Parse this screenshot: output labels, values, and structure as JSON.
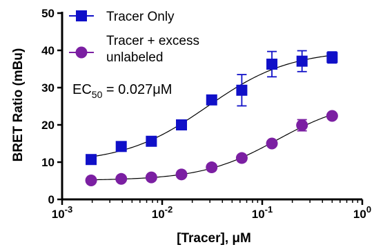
{
  "chart_data": {
    "type": "scatter",
    "xscale": "log",
    "xlim": [
      0.001,
      1
    ],
    "ylim": [
      0,
      50
    ],
    "xlabel": "[Tracer], μM",
    "ylabel": "BRET Ratio (mBu)",
    "x_ticks": [
      {
        "value": 0.001,
        "base": "10",
        "exp": "-3"
      },
      {
        "value": 0.01,
        "base": "10",
        "exp": "-2"
      },
      {
        "value": 0.1,
        "base": "10",
        "exp": "-1"
      },
      {
        "value": 1,
        "base": "10",
        "exp": "0"
      }
    ],
    "y_ticks": [
      "0",
      "10",
      "20",
      "30",
      "40",
      "50"
    ],
    "legend_position": "top-left",
    "annotation": {
      "prefix": "EC",
      "subscript": "50",
      "suffix": " = 0.027μM"
    },
    "series": [
      {
        "name": "Tracer Only",
        "legend_lines": [
          "Tracer Only"
        ],
        "color": "#1010c8",
        "marker": "square",
        "x": [
          0.00195,
          0.0039,
          0.0078,
          0.0156,
          0.03125,
          0.0625,
          0.125,
          0.25,
          0.5
        ],
        "y": [
          10.7,
          14.2,
          15.6,
          20.0,
          26.7,
          29.3,
          36.3,
          37.1,
          38.1
        ],
        "error": [
          0.5,
          0.5,
          0.5,
          0.6,
          0.6,
          4.2,
          3.4,
          2.8,
          1.5
        ]
      },
      {
        "name": "Tracer + excess unlabeled",
        "legend_lines": [
          "Tracer + excess",
          "unlabeled"
        ],
        "color": "#7b1fa2",
        "marker": "circle",
        "x": [
          0.00195,
          0.0039,
          0.0078,
          0.0156,
          0.03125,
          0.0625,
          0.125,
          0.25,
          0.5
        ],
        "y": [
          5.1,
          5.5,
          5.9,
          6.7,
          8.6,
          11.1,
          15.0,
          19.9,
          22.4
        ],
        "error": [
          0.3,
          0.3,
          0.3,
          0.3,
          0.3,
          0.4,
          0.5,
          1.5,
          0.6
        ]
      }
    ]
  }
}
